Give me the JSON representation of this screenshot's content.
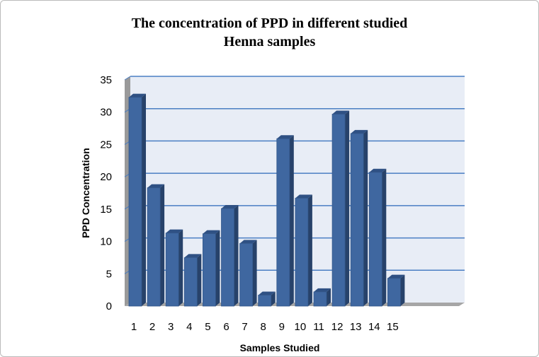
{
  "chart_data": {
    "type": "bar",
    "title_lines": [
      "The concentration of PPD in different studied",
      "Henna samples"
    ],
    "xlabel": "Samples Studied",
    "ylabel": "PPD Concentration",
    "categories": [
      "1",
      "2",
      "3",
      "4",
      "5",
      "6",
      "7",
      "8",
      "9",
      "10",
      "11",
      "12",
      "13",
      "14",
      "15"
    ],
    "values": [
      32.3,
      18.3,
      11.3,
      7.5,
      11.2,
      15.1,
      9.7,
      1.7,
      25.9,
      16.7,
      2.2,
      29.7,
      26.7,
      20.7,
      4.3
    ],
    "ylim": [
      0,
      35
    ],
    "yticks": [
      0,
      5,
      10,
      15,
      20,
      25,
      30,
      35
    ],
    "grid": true,
    "legend": "none",
    "style": "3d-column",
    "colors": {
      "bar_front": "#3f67a0",
      "bar_side": "#27426a",
      "bar_top": "#2f5184",
      "wall": "#e8edf6",
      "grid": "#4a7ec3",
      "floor": "#a6a6a6"
    }
  }
}
